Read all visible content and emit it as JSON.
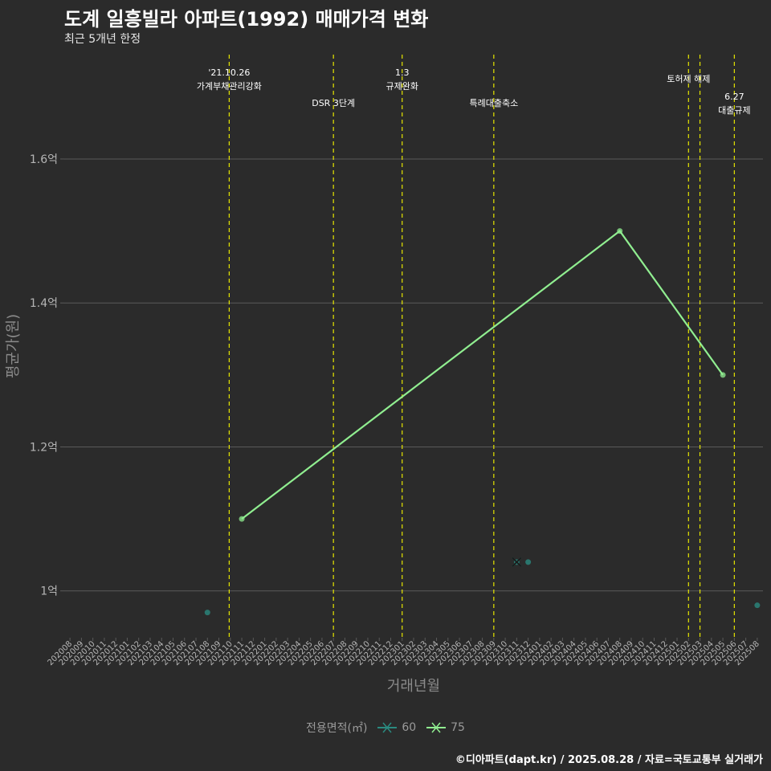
{
  "title": "도계 일흥빌라 아파트(1992) 매매가격 변화",
  "subtitle": "최근 5개년 한정",
  "caption": "©디아파트(dapt.kr) / 2025.08.28 / 자료=국토교통부 실거래가",
  "colors": {
    "background": "#2b2b2b",
    "grid": "#5a5a5a",
    "axis_text": "#b5b5b5",
    "vline": "#e6e600",
    "series_60": "#2a8a80",
    "series_75": "#90ee90",
    "annotation": "#ffffff"
  },
  "chart_data": {
    "type": "line",
    "xlabel": "거래년월",
    "ylabel": "평균가(원)",
    "categories": [
      "202008",
      "202009",
      "202010",
      "202011",
      "202012",
      "202101",
      "202102",
      "202103",
      "202104",
      "202105",
      "202106",
      "202107",
      "202108",
      "202109",
      "202110",
      "202111",
      "202112",
      "202201",
      "202202",
      "202203",
      "202204",
      "202205",
      "202206",
      "202207",
      "202208",
      "202209",
      "202210",
      "202211",
      "202212",
      "202301",
      "202302",
      "202303",
      "202304",
      "202305",
      "202306",
      "202307",
      "202308",
      "202309",
      "202310",
      "202311",
      "202312",
      "202401",
      "202402",
      "202403",
      "202404",
      "202405",
      "202406",
      "202407",
      "202408",
      "202409",
      "202410",
      "202411",
      "202412",
      "202501",
      "202502",
      "202503",
      "202504",
      "202505",
      "202506",
      "202507",
      "202508"
    ],
    "ylim": [
      0.935,
      1.745
    ],
    "yticks": [
      1.0,
      1.2,
      1.4,
      1.6
    ],
    "ytick_labels": [
      "1억",
      "1.2억",
      "1.4억",
      "1.6억"
    ],
    "legend": {
      "title": "전용면적(㎡)",
      "entries": [
        "60",
        "75"
      ]
    },
    "series": [
      {
        "name": "60",
        "line": false,
        "points": [
          {
            "x": "202108",
            "y": 0.97
          },
          {
            "x": "202311",
            "y": 1.04
          },
          {
            "x": "202312",
            "y": 1.04
          },
          {
            "x": "202508",
            "y": 0.98
          }
        ],
        "x_markers": [
          {
            "x": "202311",
            "y": 1.04
          }
        ]
      },
      {
        "name": "75",
        "line": true,
        "points": [
          {
            "x": "202111",
            "y": 1.1
          },
          {
            "x": "202408",
            "y": 1.5
          },
          {
            "x": "202505",
            "y": 1.3
          }
        ],
        "x_markers": [
          {
            "x": "202311",
            "y": 1.04
          }
        ]
      }
    ],
    "events": [
      {
        "x": "202110",
        "offset": -0.1,
        "labels": [
          "'21.10.26",
          "가계부채관리강화"
        ],
        "row": 0
      },
      {
        "x": "202207",
        "offset": 0,
        "labels": [
          "DSR 3단계"
        ],
        "row": 2
      },
      {
        "x": "202301",
        "offset": 0,
        "labels": [
          "1.3",
          "규제완화"
        ],
        "row": 0
      },
      {
        "x": "202309",
        "offset": 0,
        "labels": [
          "특례대출축소"
        ],
        "row": 2
      },
      {
        "x": "202502",
        "offset": 0,
        "labels": [
          "토허제 해제"
        ],
        "row": 1
      },
      {
        "x": "202503",
        "offset": 0,
        "labels": [],
        "row": 1
      },
      {
        "x": "202506",
        "offset": 0,
        "labels": [
          "6.27",
          "대출규제"
        ],
        "row": 3
      }
    ]
  }
}
